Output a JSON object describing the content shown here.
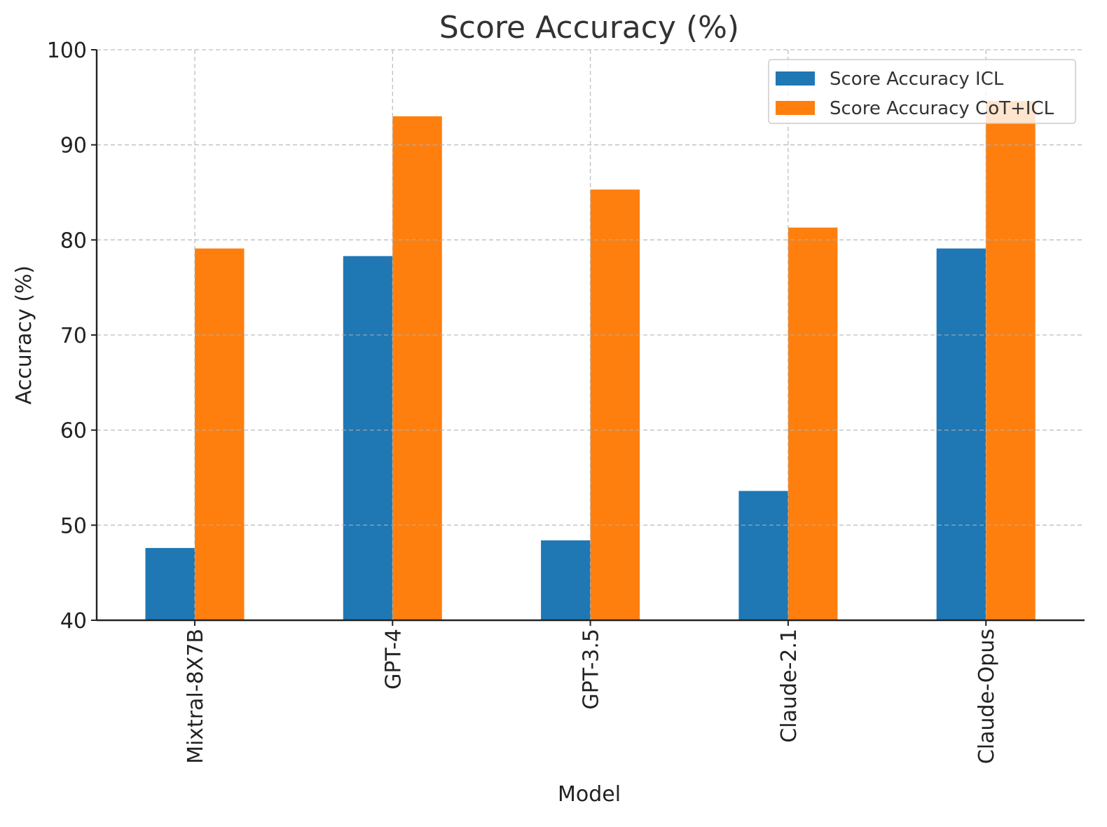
{
  "chart_data": {
    "type": "bar",
    "title": "Score Accuracy (%)",
    "xlabel": "Model",
    "ylabel": "Accuracy (%)",
    "categories": [
      "Mixtral-8X7B",
      "GPT-4",
      "GPT-3.5",
      "Claude-2.1",
      "Claude-Opus"
    ],
    "series": [
      {
        "name": "Score Accuracy ICL",
        "color": "#1f77b4",
        "values": [
          47.6,
          78.3,
          48.4,
          53.6,
          79.1
        ]
      },
      {
        "name": "Score Accuracy CoT+ICL",
        "color": "#ff7f0e",
        "values": [
          79.1,
          93.0,
          85.3,
          81.3,
          94.6
        ]
      }
    ],
    "ylim": [
      40,
      100
    ],
    "yticks": [
      40,
      50,
      60,
      70,
      80,
      90,
      100
    ],
    "grid": true,
    "legend_position": "top-right"
  }
}
